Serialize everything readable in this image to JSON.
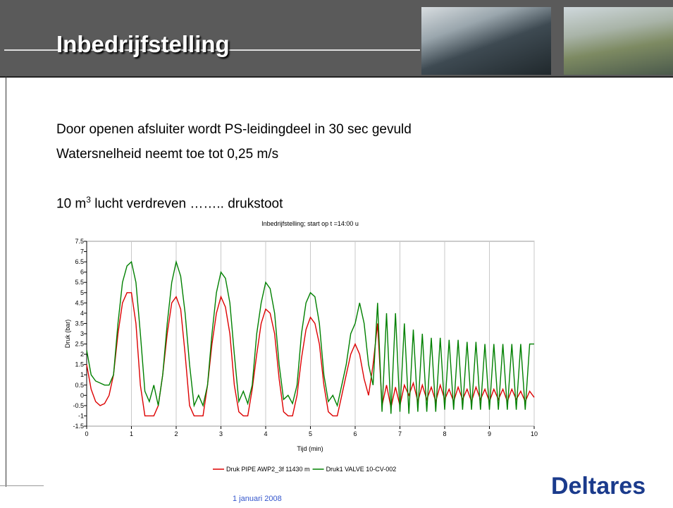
{
  "slide": {
    "title": "Inbedrijfstelling",
    "lines": [
      "Door openen afsluiter wordt PS-leidingdeel in 30 sec gevuld",
      "Watersnelheid neemt toe tot 0,25 m/s"
    ],
    "line3": {
      "before": "10 m",
      "sup": "3",
      "after": " lucht verdreven …….. drukstoot"
    },
    "footer": "1 januari 2008",
    "logo": "Deltares"
  },
  "chart_data": {
    "type": "line",
    "title": "Inbedrijfstelling; start op t =14:00 u",
    "xlabel": "Tijd (min)",
    "ylabel": "Druk (bar)",
    "x": [
      0,
      0.1,
      0.2,
      0.3,
      0.4,
      0.5,
      0.6,
      0.7,
      0.8,
      0.9,
      1,
      1.1,
      1.2,
      1.3,
      1.4,
      1.5,
      1.6,
      1.7,
      1.8,
      1.9,
      2,
      2.1,
      2.2,
      2.3,
      2.4,
      2.5,
      2.6,
      2.7,
      2.8,
      2.9,
      3,
      3.1,
      3.2,
      3.3,
      3.4,
      3.5,
      3.6,
      3.7,
      3.8,
      3.9,
      4,
      4.1,
      4.2,
      4.3,
      4.4,
      4.5,
      4.6,
      4.7,
      4.8,
      4.9,
      5,
      5.1,
      5.2,
      5.3,
      5.4,
      5.5,
      5.6,
      5.7,
      5.8,
      5.9,
      6,
      6.1,
      6.2,
      6.3,
      6.4,
      6.5,
      6.6,
      6.7,
      6.8,
      6.9,
      7,
      7.1,
      7.2,
      7.3,
      7.4,
      7.5,
      7.6,
      7.7,
      7.8,
      7.9,
      8,
      8.1,
      8.2,
      8.3,
      8.4,
      8.5,
      8.6,
      8.7,
      8.8,
      8.9,
      9,
      9.1,
      9.2,
      9.3,
      9.4,
      9.5,
      9.6,
      9.7,
      9.8,
      9.9,
      10
    ],
    "series": [
      {
        "name": "Druk PIPE AWP2_3f 11430 m",
        "color": "#dd0000",
        "values": [
          1.5,
          0.3,
          -0.3,
          -0.5,
          -0.4,
          0,
          1,
          3,
          4.5,
          5,
          5,
          3.5,
          0.5,
          -1,
          -1,
          -1,
          -0.5,
          1,
          3,
          4.5,
          4.8,
          4.2,
          2,
          -0.5,
          -1,
          -1,
          -1,
          0.5,
          2.5,
          4,
          4.8,
          4.3,
          3,
          0.5,
          -0.8,
          -1,
          -1,
          0.3,
          2,
          3.5,
          4.2,
          4,
          3,
          0.8,
          -0.8,
          -1,
          -1,
          0,
          1.8,
          3.2,
          3.8,
          3.5,
          2.5,
          0.5,
          -0.8,
          -1,
          -1,
          0,
          1,
          2,
          2.5,
          2,
          0.8,
          0,
          1.5,
          3.5,
          -0.5,
          0.5,
          -0.6,
          0.4,
          -0.5,
          0.5,
          0,
          0.6,
          -0.3,
          0.5,
          -0.2,
          0.4,
          -0.3,
          0.5,
          -0.2,
          0.3,
          -0.3,
          0.4,
          -0.2,
          0.3,
          -0.3,
          0.4,
          -0.2,
          0.3,
          -0.3,
          0.3,
          -0.2,
          0.3,
          -0.3,
          0.3,
          -0.2,
          0.2,
          -0.3,
          0.2,
          -0.1
        ]
      },
      {
        "name": "Druk1 VALVE 10-CV-002",
        "color": "#008000",
        "values": [
          2.2,
          1,
          0.7,
          0.6,
          0.5,
          0.5,
          1,
          3.5,
          5.5,
          6.3,
          6.5,
          5.5,
          3,
          0.2,
          -0.3,
          0.5,
          -0.5,
          1,
          3.5,
          5.5,
          6.5,
          5.8,
          4,
          1.5,
          -0.5,
          0,
          -0.5,
          0.5,
          3,
          5,
          6,
          5.7,
          4.5,
          2,
          -0.3,
          0.2,
          -0.4,
          0.5,
          3,
          4.5,
          5.5,
          5.2,
          4,
          1.5,
          -0.2,
          0,
          -0.4,
          0.5,
          3,
          4.5,
          5,
          4.8,
          3.5,
          1,
          -0.3,
          0,
          -0.5,
          0.5,
          1.5,
          3,
          3.5,
          4.5,
          3.5,
          1.5,
          0.5,
          4.5,
          -0.8,
          4,
          -0.9,
          4,
          -0.8,
          3.5,
          -0.9,
          3.2,
          -0.8,
          3,
          -0.8,
          2.8,
          -0.8,
          2.8,
          -0.7,
          2.7,
          -0.7,
          2.7,
          -0.7,
          2.6,
          -0.7,
          2.6,
          -0.7,
          2.5,
          -0.7,
          2.5,
          -0.7,
          2.5,
          -0.7,
          2.5,
          -0.7,
          2.5,
          -0.7,
          2.5,
          2.5
        ]
      }
    ],
    "xlim": [
      0,
      10
    ],
    "xticks": [
      0,
      1,
      2,
      3,
      4,
      5,
      6,
      7,
      8,
      9,
      10
    ],
    "ylim": [
      -1.5,
      7.5
    ],
    "yticks": [
      -1.5,
      -1,
      -0.5,
      0,
      0.5,
      1,
      1.5,
      2,
      2.5,
      3,
      3.5,
      4,
      4.5,
      5,
      5.5,
      6,
      6.5,
      7,
      7.5
    ],
    "grid": true
  }
}
